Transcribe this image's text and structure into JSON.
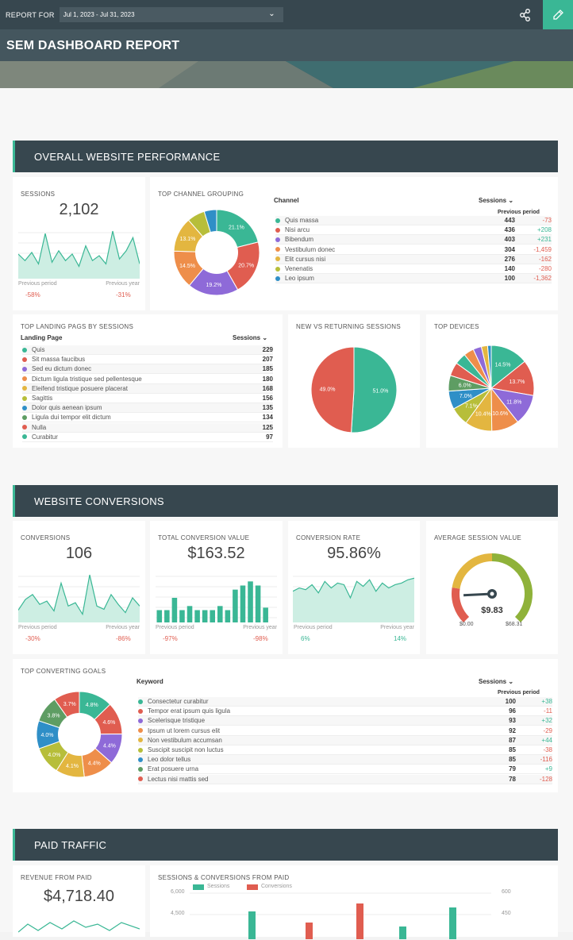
{
  "header": {
    "report_for": "REPORT FOR",
    "date_range": "Jul 1, 2023 - Jul 31, 2023",
    "title": "SEM DASHBOARD REPORT"
  },
  "sections": {
    "overall": "OVERALL WEBSITE PERFORMANCE",
    "conversions": "WEBSITE CONVERSIONS",
    "paid": "PAID TRAFFIC"
  },
  "colors": {
    "teal": "#3ab795",
    "red": "#e05d50",
    "purple": "#8e6ad8",
    "orange": "#ee8e4a",
    "yellow": "#e3b640",
    "olive": "#b7be3a",
    "blue": "#2f8fc7",
    "green": "#5e9d63",
    "dark": "#37474f"
  },
  "sessions": {
    "title": "SESSIONS",
    "value": "2,102",
    "prev_label": "Previous period",
    "year_label": "Previous year",
    "prev_change": "-58%",
    "year_change": "-31%",
    "spark": [
      30,
      22,
      32,
      18,
      55,
      20,
      34,
      22,
      30,
      15,
      40,
      22,
      28,
      18,
      58,
      24,
      34,
      50,
      18
    ]
  },
  "channel": {
    "title": "TOP CHANNEL GROUPING",
    "col": "Channel",
    "sessions_label": "Sessions",
    "prev_label": "Previous period",
    "rows": [
      {
        "name": "Quis massa",
        "v": "443",
        "c": "-73"
      },
      {
        "name": "Nisi arcu",
        "v": "436",
        "c": "+208"
      },
      {
        "name": "Bibendum",
        "v": "403",
        "c": "+231"
      },
      {
        "name": "Vestibulum donec",
        "v": "304",
        "c": "-1,459"
      },
      {
        "name": "Elit cursus nisi",
        "v": "276",
        "c": "-162"
      },
      {
        "name": "Venenatis",
        "v": "140",
        "c": "-280"
      },
      {
        "name": "Leo ipsum",
        "v": "100",
        "c": "-1,362"
      }
    ],
    "donut": [
      {
        "label": "21.1%",
        "value": 21.1
      },
      {
        "label": "20.7%",
        "value": 20.7
      },
      {
        "label": "19.2%",
        "value": 19.2
      },
      {
        "label": "14.5%",
        "value": 14.5
      },
      {
        "label": "13.1%",
        "value": 13.1
      },
      {
        "label": "",
        "value": 6.7
      },
      {
        "label": "",
        "value": 4.7
      }
    ]
  },
  "landing": {
    "title": "TOP LANDING PAGS BY SESSIONS",
    "col": "Landing Page",
    "sessions_label": "Sessions",
    "rows": [
      {
        "name": "Quis",
        "v": "229"
      },
      {
        "name": "Sit massa faucibus",
        "v": "207"
      },
      {
        "name": "Sed eu dictum donec",
        "v": "185"
      },
      {
        "name": "Dictum ligula tristique sed pellentesque",
        "v": "180"
      },
      {
        "name": "Eleifend tristique posuere placerat",
        "v": "168"
      },
      {
        "name": "Sagittis",
        "v": "156"
      },
      {
        "name": "Dolor quis aenean ipsum",
        "v": "135"
      },
      {
        "name": "Ligula dui tempor elit dictum",
        "v": "134"
      },
      {
        "name": "Nulla",
        "v": "125"
      },
      {
        "name": "Curabitur",
        "v": "97"
      }
    ]
  },
  "newret": {
    "title": "NEW VS RETURNING SESSIONS",
    "slices": [
      {
        "label": "51.0%",
        "value": 51.0
      },
      {
        "label": "49.0%",
        "value": 49.0
      }
    ]
  },
  "devices": {
    "title": "TOP DEVICES",
    "slices": [
      {
        "label": "14.5%",
        "value": 14.5
      },
      {
        "label": "13.7%",
        "value": 13.7
      },
      {
        "label": "11.8%",
        "value": 11.8
      },
      {
        "label": "10.6%",
        "value": 10.6
      },
      {
        "label": "10.4%",
        "value": 10.4
      },
      {
        "label": "7.1%",
        "value": 7.1
      },
      {
        "label": "7.0%",
        "value": 7.0
      },
      {
        "label": "6.0%",
        "value": 6.0
      },
      {
        "label": "",
        "value": 5.2
      },
      {
        "label": "",
        "value": 4.4
      },
      {
        "label": "",
        "value": 3.9
      },
      {
        "label": "",
        "value": 3.2
      },
      {
        "label": "",
        "value": 2.4
      },
      {
        "label": "",
        "value": 1.4
      }
    ]
  },
  "conv": {
    "title": "CONVERSIONS",
    "value": "106",
    "prev_change": "-30%",
    "year_change": "-86%",
    "prev_label": "Previous period",
    "year_label": "Previous year",
    "spark": [
      15,
      28,
      34,
      22,
      26,
      14,
      48,
      20,
      24,
      10,
      58,
      20,
      16,
      34,
      22,
      12,
      30,
      20
    ]
  },
  "tcv": {
    "title": "TOTAL CONVERSION VALUE",
    "value": "$163.52",
    "prev_change": "-97%",
    "year_change": "-98%",
    "prev_label": "Previous period",
    "year_label": "Previous year",
    "bars": [
      15,
      15,
      30,
      15,
      20,
      15,
      15,
      15,
      20,
      15,
      40,
      45,
      50,
      45,
      18,
      0
    ]
  },
  "rate": {
    "title": "CONVERSION RATE",
    "value": "95.86%",
    "prev_change": "6%",
    "year_change": "14%",
    "prev_label": "Previous period",
    "year_label": "Previous year",
    "spark": [
      38,
      42,
      40,
      46,
      36,
      50,
      42,
      48,
      46,
      30,
      50,
      44,
      52,
      38,
      48,
      42,
      46,
      48,
      52,
      54
    ]
  },
  "asv": {
    "title": "AVERAGE SESSION VALUE",
    "value": "$9.83",
    "min": "$0.00",
    "max": "$68.31",
    "fraction": 0.144
  },
  "goals": {
    "title": "TOP CONVERTING GOALS",
    "col": "Keyword",
    "sessions_label": "Sessions",
    "prev_label": "Previous period",
    "rows": [
      {
        "name": "Consectetur curabitur",
        "v": "100",
        "c": "+38"
      },
      {
        "name": "Tempor erat ipsum quis ligula",
        "v": "96",
        "c": "-11"
      },
      {
        "name": "Scelerisque tristique",
        "v": "93",
        "c": "+32"
      },
      {
        "name": "Ipsum ut lorem cursus elit",
        "v": "92",
        "c": "-29"
      },
      {
        "name": "Non vestibulum accumsan",
        "v": "87",
        "c": "+44"
      },
      {
        "name": "Suscipit suscipit non luctus",
        "v": "85",
        "c": "-38"
      },
      {
        "name": "Leo dolor tellus",
        "v": "85",
        "c": "-116"
      },
      {
        "name": "Erat posuere urna",
        "v": "79",
        "c": "+9"
      },
      {
        "name": "Lectus nisi mattis sed",
        "v": "78",
        "c": "-128"
      }
    ],
    "donut": [
      {
        "label": "4.8%",
        "value": 4.8
      },
      {
        "label": "4.6%",
        "value": 4.6
      },
      {
        "label": "4.4%",
        "value": 4.4
      },
      {
        "label": "4.4%",
        "value": 4.4
      },
      {
        "label": "4.1%",
        "value": 4.1
      },
      {
        "label": "4.0%",
        "value": 4.0
      },
      {
        "label": "4.0%",
        "value": 4.0
      },
      {
        "label": "3.8%",
        "value": 3.8
      },
      {
        "label": "3.7%",
        "value": 3.7
      }
    ]
  },
  "revenue": {
    "title": "REVENUE FROM PAID",
    "value": "$4,718.40"
  },
  "paid_chart": {
    "title": "SESSIONS & CONVERSIONS FROM PAID",
    "legend_sessions": "Sessions",
    "legend_conversions": "Conversions",
    "left_ticks": [
      "6,000",
      "4,500"
    ],
    "right_ticks": [
      "600",
      "450"
    ]
  },
  "chart_data": {
    "type": "bar",
    "title": "SESSIONS & CONVERSIONS FROM PAID",
    "series": [
      {
        "name": "Sessions"
      },
      {
        "name": "Conversions"
      }
    ],
    "ylim_left": [
      0,
      6000
    ],
    "ylim_right": [
      0,
      600
    ]
  }
}
